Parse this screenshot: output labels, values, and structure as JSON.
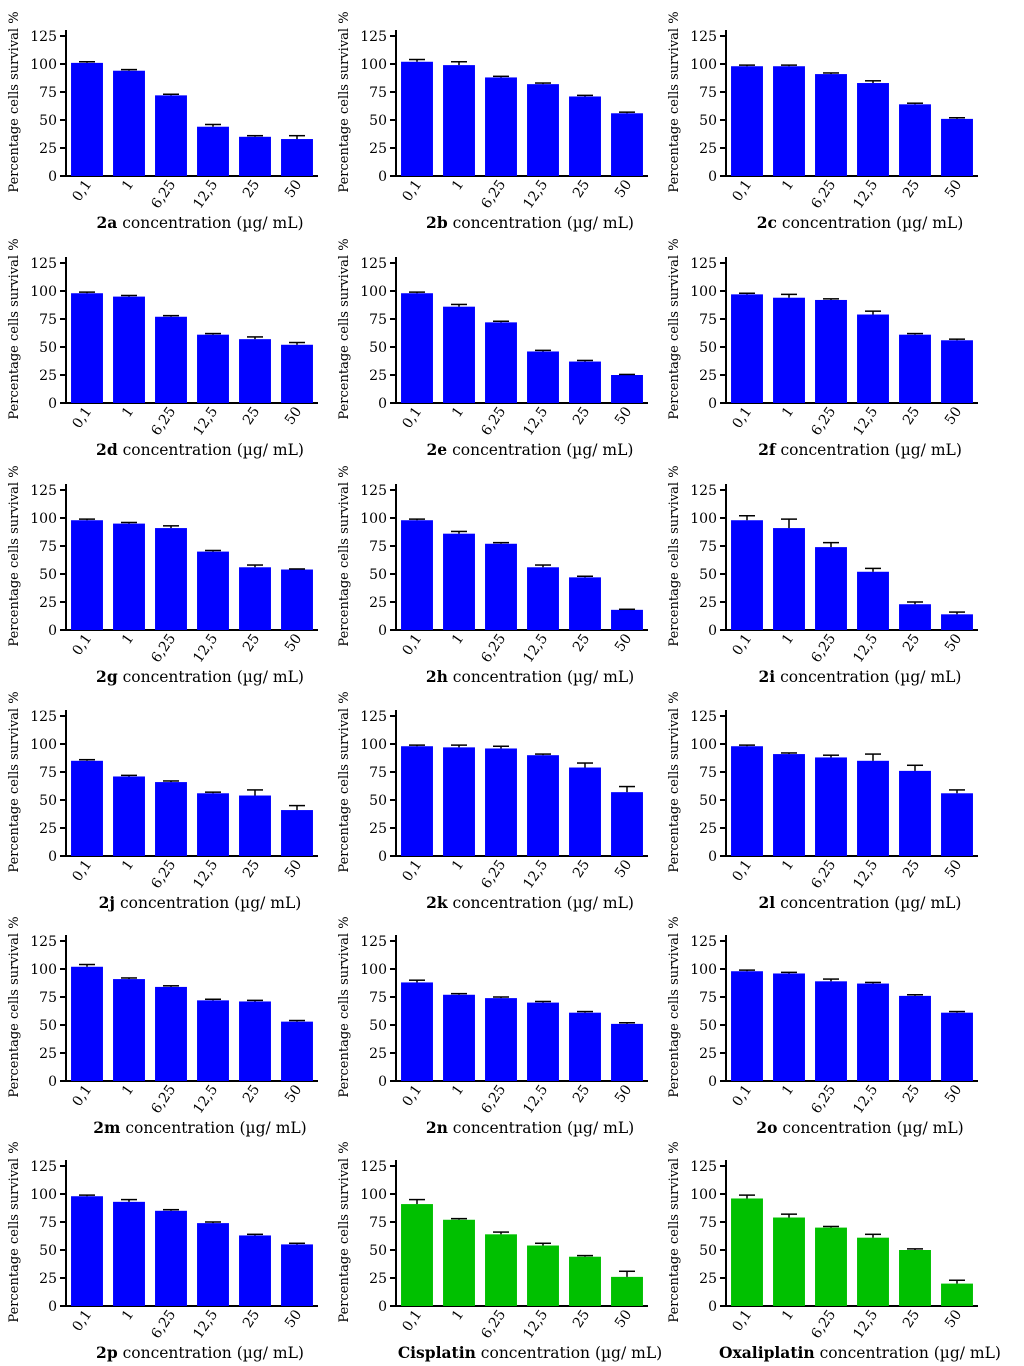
{
  "figure": {
    "y_axis_label": "Percentage cells survival %",
    "x_title_suffix": " concentration (µg/ mL)",
    "colors": {
      "test_bar": "#0000ff",
      "reference_bar": "#00c000",
      "axis": "#000000"
    }
  },
  "chart_data": [
    {
      "type": "bar",
      "compound": "2a",
      "title": "",
      "xlabel": "2a concentration (µg/ mL)",
      "ylabel": "Percentage cells survival %",
      "categories": [
        "0,1",
        "1",
        "6,25",
        "12,5",
        "25",
        "50"
      ],
      "values": [
        101,
        94,
        72,
        44,
        35,
        33
      ],
      "errors": [
        1,
        1,
        1,
        2,
        1,
        3
      ],
      "ylim": [
        0,
        125
      ],
      "yticks": [
        "0",
        "25",
        "50",
        "75",
        "100",
        "125"
      ],
      "color": "#0000ff"
    },
    {
      "type": "bar",
      "compound": "2b",
      "title": "",
      "xlabel": "2b concentration (µg/ mL)",
      "ylabel": "Percentage cells survival %",
      "categories": [
        "0,1",
        "1",
        "6,25",
        "12,5",
        "25",
        "50"
      ],
      "values": [
        102,
        99,
        88,
        82,
        71,
        56
      ],
      "errors": [
        2,
        3,
        1,
        1,
        1,
        1
      ],
      "ylim": [
        0,
        125
      ],
      "yticks": [
        "0",
        "25",
        "50",
        "75",
        "100",
        "125"
      ],
      "color": "#0000ff"
    },
    {
      "type": "bar",
      "compound": "2c",
      "title": "",
      "xlabel": "2c concentration (µg/ mL)",
      "ylabel": "Percentage cells survival %",
      "categories": [
        "0,1",
        "1",
        "6,25",
        "12,5",
        "25",
        "50"
      ],
      "values": [
        98,
        98,
        91,
        83,
        64,
        51
      ],
      "errors": [
        1,
        1,
        1,
        2,
        1,
        1
      ],
      "ylim": [
        0,
        125
      ],
      "yticks": [
        "0",
        "25",
        "50",
        "75",
        "100",
        "125"
      ],
      "color": "#0000ff"
    },
    {
      "type": "bar",
      "compound": "2d",
      "title": "",
      "xlabel": "2d concentration (µg/ mL)",
      "ylabel": "Percentage cells survival %",
      "categories": [
        "0,1",
        "1",
        "6,25",
        "12,5",
        "25",
        "50"
      ],
      "values": [
        98,
        95,
        77,
        61,
        57,
        52
      ],
      "errors": [
        1,
        1,
        1,
        1,
        2,
        2
      ],
      "ylim": [
        0,
        125
      ],
      "yticks": [
        "0",
        "25",
        "50",
        "75",
        "100",
        "125"
      ],
      "color": "#0000ff"
    },
    {
      "type": "bar",
      "compound": "2e",
      "title": "",
      "xlabel": "2e concentration (µg/ mL)",
      "ylabel": "Percentage cells survival %",
      "categories": [
        "0,1",
        "1",
        "6,25",
        "12,5",
        "25",
        "50"
      ],
      "values": [
        98,
        86,
        72,
        46,
        37,
        25
      ],
      "errors": [
        1,
        2,
        1,
        1,
        1,
        0.5
      ],
      "ylim": [
        0,
        125
      ],
      "yticks": [
        "0",
        "25",
        "50",
        "75",
        "100",
        "125"
      ],
      "color": "#0000ff"
    },
    {
      "type": "bar",
      "compound": "2f",
      "title": "",
      "xlabel": "2f concentration (µg/ mL)",
      "ylabel": "Percentage cells survival %",
      "categories": [
        "0,1",
        "1",
        "6,25",
        "12,5",
        "25",
        "50"
      ],
      "values": [
        97,
        94,
        92,
        79,
        61,
        56
      ],
      "errors": [
        1,
        3,
        1,
        3,
        1,
        1
      ],
      "ylim": [
        0,
        125
      ],
      "yticks": [
        "0",
        "25",
        "50",
        "75",
        "100",
        "125"
      ],
      "color": "#0000ff"
    },
    {
      "type": "bar",
      "compound": "2g",
      "title": "",
      "xlabel": "2g concentration (µg/ mL)",
      "ylabel": "Percentage cells survival %",
      "categories": [
        "0,1",
        "1",
        "6,25",
        "12,5",
        "25",
        "50"
      ],
      "values": [
        98,
        95,
        91,
        70,
        56,
        54
      ],
      "errors": [
        1,
        1,
        2,
        1,
        2,
        0.5
      ],
      "ylim": [
        0,
        125
      ],
      "yticks": [
        "0",
        "25",
        "50",
        "75",
        "100",
        "125"
      ],
      "color": "#0000ff"
    },
    {
      "type": "bar",
      "compound": "2h",
      "title": "",
      "xlabel": "2h concentration (µg/ mL)",
      "ylabel": "Percentage cells survival %",
      "categories": [
        "0,1",
        "1",
        "6,25",
        "12,5",
        "25",
        "50"
      ],
      "values": [
        98,
        86,
        77,
        56,
        47,
        18
      ],
      "errors": [
        1,
        2,
        1,
        2,
        1,
        0.5
      ],
      "ylim": [
        0,
        125
      ],
      "yticks": [
        "0",
        "25",
        "50",
        "75",
        "100",
        "125"
      ],
      "color": "#0000ff"
    },
    {
      "type": "bar",
      "compound": "2i",
      "title": "",
      "xlabel": "2i concentration (µg/ mL)",
      "ylabel": "Percentage cells survival %",
      "categories": [
        "0,1",
        "1",
        "6,25",
        "12,5",
        "25",
        "50"
      ],
      "values": [
        98,
        91,
        74,
        52,
        23,
        14
      ],
      "errors": [
        4,
        8,
        4,
        3,
        2,
        2
      ],
      "ylim": [
        0,
        125
      ],
      "yticks": [
        "0",
        "25",
        "50",
        "75",
        "100",
        "125"
      ],
      "color": "#0000ff"
    },
    {
      "type": "bar",
      "compound": "2j",
      "title": "",
      "xlabel": "2j concentration (µg/ mL)",
      "ylabel": "Percentage cells survival %",
      "categories": [
        "0,1",
        "1",
        "6,25",
        "12,5",
        "25",
        "50"
      ],
      "values": [
        85,
        71,
        66,
        56,
        54,
        41
      ],
      "errors": [
        1,
        1,
        1,
        1,
        5,
        4
      ],
      "ylim": [
        0,
        125
      ],
      "yticks": [
        "0",
        "25",
        "50",
        "75",
        "100",
        "125"
      ],
      "color": "#0000ff"
    },
    {
      "type": "bar",
      "compound": "2k",
      "title": "",
      "xlabel": "2k concentration (µg/ mL)",
      "ylabel": "Percentage cells survival %",
      "categories": [
        "0,1",
        "1",
        "6,25",
        "12,5",
        "25",
        "50"
      ],
      "values": [
        98,
        97,
        96,
        90,
        79,
        57
      ],
      "errors": [
        1,
        2,
        2,
        1,
        4,
        5
      ],
      "ylim": [
        0,
        125
      ],
      "yticks": [
        "0",
        "25",
        "50",
        "75",
        "100",
        "125"
      ],
      "color": "#0000ff"
    },
    {
      "type": "bar",
      "compound": "2l",
      "title": "",
      "xlabel": "2l concentration (µg/ mL)",
      "ylabel": "Percentage cells survival %",
      "categories": [
        "0,1",
        "1",
        "6,25",
        "12,5",
        "25",
        "50"
      ],
      "values": [
        98,
        91,
        88,
        85,
        76,
        56
      ],
      "errors": [
        1,
        1,
        2,
        6,
        5,
        3
      ],
      "ylim": [
        0,
        125
      ],
      "yticks": [
        "0",
        "25",
        "50",
        "75",
        "100",
        "125"
      ],
      "color": "#0000ff"
    },
    {
      "type": "bar",
      "compound": "2m",
      "title": "",
      "xlabel": "2m concentration (µg/ mL)",
      "ylabel": "Percentage cells survival %",
      "categories": [
        "0,1",
        "1",
        "6,25",
        "12,5",
        "25",
        "50"
      ],
      "values": [
        102,
        91,
        84,
        72,
        71,
        53
      ],
      "errors": [
        2,
        1,
        1,
        1,
        1,
        1
      ],
      "ylim": [
        0,
        125
      ],
      "yticks": [
        "0",
        "25",
        "50",
        "75",
        "100",
        "125"
      ],
      "color": "#0000ff"
    },
    {
      "type": "bar",
      "compound": "2n",
      "title": "",
      "xlabel": "2n concentration (µg/ mL)",
      "ylabel": "Percentage cells survival %",
      "categories": [
        "0,1",
        "1",
        "6,25",
        "12,5",
        "25",
        "50"
      ],
      "values": [
        88,
        77,
        74,
        70,
        61,
        51
      ],
      "errors": [
        2,
        1,
        1,
        1,
        1,
        1
      ],
      "ylim": [
        0,
        125
      ],
      "yticks": [
        "0",
        "25",
        "50",
        "75",
        "100",
        "125"
      ],
      "color": "#0000ff"
    },
    {
      "type": "bar",
      "compound": "2o",
      "title": "",
      "xlabel": "2o concentration (µg/ mL)",
      "ylabel": "Percentage cells survival %",
      "categories": [
        "0,1",
        "1",
        "6,25",
        "12,5",
        "25",
        "50"
      ],
      "values": [
        98,
        96,
        89,
        87,
        76,
        61
      ],
      "errors": [
        1,
        1,
        2,
        1,
        1,
        1
      ],
      "ylim": [
        0,
        125
      ],
      "yticks": [
        "0",
        "25",
        "50",
        "75",
        "100",
        "125"
      ],
      "color": "#0000ff"
    },
    {
      "type": "bar",
      "compound": "2p",
      "title": "",
      "xlabel": "2p concentration (µg/ mL)",
      "ylabel": "Percentage cells survival %",
      "categories": [
        "0,1",
        "1",
        "6,25",
        "12,5",
        "25",
        "50"
      ],
      "values": [
        98,
        93,
        85,
        74,
        63,
        55
      ],
      "errors": [
        1,
        2,
        1,
        1,
        1,
        1
      ],
      "ylim": [
        0,
        125
      ],
      "yticks": [
        "0",
        "25",
        "50",
        "75",
        "100",
        "125"
      ],
      "color": "#0000ff"
    },
    {
      "type": "bar",
      "compound": "Cisplatin",
      "title": "",
      "xlabel": "Cisplatin concentration (µg/ mL)",
      "ylabel": "Percentage cells survival %",
      "categories": [
        "0,1",
        "1",
        "6,25",
        "12,5",
        "25",
        "50"
      ],
      "values": [
        91,
        77,
        64,
        54,
        44,
        26
      ],
      "errors": [
        4,
        1,
        2,
        2,
        1,
        5
      ],
      "ylim": [
        0,
        125
      ],
      "yticks": [
        "0",
        "25",
        "50",
        "75",
        "100",
        "125"
      ],
      "color": "#00c000"
    },
    {
      "type": "bar",
      "compound": "Oxaliplatin",
      "title": "",
      "xlabel": "Oxaliplatin concentration (µg/ mL)",
      "ylabel": "Percentage cells survival %",
      "categories": [
        "0,1",
        "1",
        "6,25",
        "12,5",
        "25",
        "50"
      ],
      "values": [
        96,
        79,
        70,
        61,
        50,
        20
      ],
      "errors": [
        3,
        3,
        1,
        3,
        1,
        3
      ],
      "ylim": [
        0,
        125
      ],
      "yticks": [
        "0",
        "25",
        "50",
        "75",
        "100",
        "125"
      ],
      "color": "#00c000"
    }
  ]
}
